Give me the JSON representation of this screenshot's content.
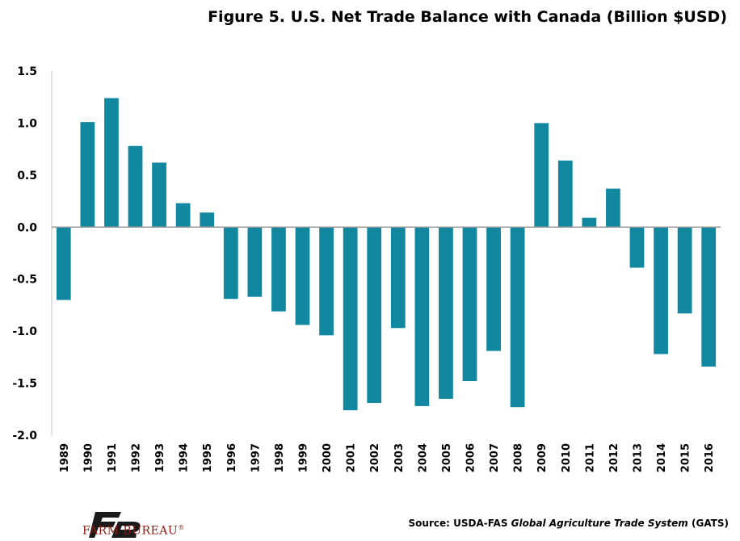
{
  "chart_data": {
    "type": "bar",
    "title": "Figure 5. U.S. Net Trade Balance with Canada (Billion $USD)",
    "xlabel": "",
    "ylabel": "",
    "ylim": [
      -2.0,
      1.5
    ],
    "yticks": [
      "1.5",
      "1.0",
      "0.5",
      "0.0",
      "-0.5",
      "-1.0",
      "-1.5",
      "-2.0"
    ],
    "ytick_values": [
      1.5,
      1.0,
      0.5,
      0.0,
      -0.5,
      -1.0,
      -1.5,
      -2.0
    ],
    "categories": [
      "1989",
      "1990",
      "1991",
      "1992",
      "1993",
      "1994",
      "1995",
      "1996",
      "1997",
      "1998",
      "1999",
      "2000",
      "2001",
      "2002",
      "2003",
      "2004",
      "2005",
      "2006",
      "2007",
      "2008",
      "2009",
      "2010",
      "2011",
      "2012",
      "2013",
      "2014",
      "2015",
      "2016"
    ],
    "values": [
      -0.7,
      1.01,
      1.24,
      0.78,
      0.62,
      0.23,
      0.14,
      -0.69,
      -0.67,
      -0.81,
      -0.94,
      -1.04,
      -1.76,
      -1.69,
      -0.97,
      -1.72,
      -1.65,
      -1.48,
      -1.19,
      -1.73,
      1.0,
      0.64,
      0.09,
      0.37,
      -0.39,
      -1.22,
      -0.83,
      -1.34
    ],
    "grid": false,
    "bar_color": "#1287a0"
  },
  "footer": {
    "brand": "FARM BUREAU",
    "brand_mark": "®",
    "source_prefix": "Source: USDA-FAS ",
    "source_italic": "Global Agriculture Trade System",
    "source_suffix": " (GATS)"
  },
  "colors": {
    "bar": "#1287a0",
    "brand": "#8a1b12",
    "logo": "#1a1a1a"
  },
  "icons": {
    "logo": "farm-bureau-logo-icon"
  }
}
